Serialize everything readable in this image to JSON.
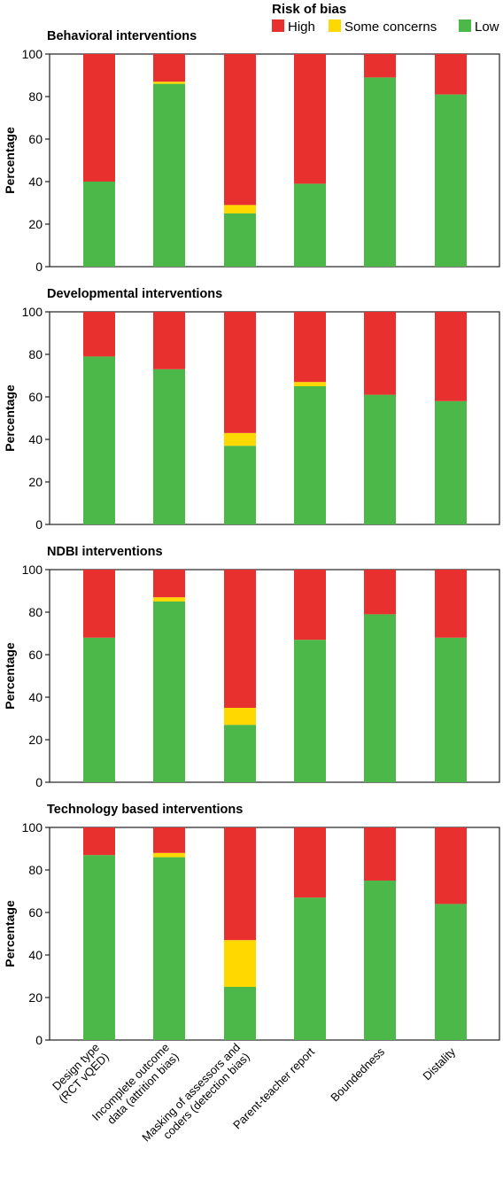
{
  "legend": {
    "title": "Risk of bias",
    "items": [
      {
        "key": "high",
        "label": "High",
        "color": "#e8312f"
      },
      {
        "key": "some",
        "label": "Some concerns",
        "color": "#ffd800"
      },
      {
        "key": "low",
        "label": "Low",
        "color": "#4cb849"
      }
    ]
  },
  "chart_data": {
    "type": "bar",
    "stacked": true,
    "categories": [
      [
        "Design type",
        "(RCT vQED)"
      ],
      [
        "Incomplete outcome",
        "data (attrition bias)"
      ],
      [
        "Masking of assessors and",
        "coders (detection bias)"
      ],
      [
        "Parent-teacher report"
      ],
      [
        "Boundedness"
      ],
      [
        "Distality"
      ]
    ],
    "ylabel": "Percentage",
    "ylim": [
      0,
      100
    ],
    "yticks": [
      0,
      20,
      40,
      60,
      80,
      100
    ],
    "panels": [
      {
        "title": "Behavioral interventions",
        "series": [
          {
            "name": "Low",
            "values": [
              40,
              86,
              25,
              39,
              89,
              81
            ]
          },
          {
            "name": "Some concerns",
            "values": [
              0,
              1,
              4,
              0,
              0,
              0
            ]
          },
          {
            "name": "High",
            "values": [
              60,
              13,
              71,
              61,
              11,
              19
            ]
          }
        ]
      },
      {
        "title": "Developmental interventions",
        "series": [
          {
            "name": "Low",
            "values": [
              79,
              73,
              37,
              65,
              61,
              58
            ]
          },
          {
            "name": "Some concerns",
            "values": [
              0,
              0,
              6,
              2,
              0,
              0
            ]
          },
          {
            "name": "High",
            "values": [
              21,
              27,
              57,
              33,
              39,
              42
            ]
          }
        ]
      },
      {
        "title": "NDBI interventions",
        "series": [
          {
            "name": "Low",
            "values": [
              68,
              85,
              27,
              67,
              79,
              68
            ]
          },
          {
            "name": "Some concerns",
            "values": [
              0,
              2,
              8,
              0,
              0,
              0
            ]
          },
          {
            "name": "High",
            "values": [
              32,
              13,
              65,
              33,
              21,
              32
            ]
          }
        ]
      },
      {
        "title": "Technology based interventions",
        "series": [
          {
            "name": "Low",
            "values": [
              87,
              86,
              25,
              67,
              75,
              64
            ]
          },
          {
            "name": "Some concerns",
            "values": [
              0,
              2,
              22,
              0,
              0,
              0
            ]
          },
          {
            "name": "High",
            "values": [
              13,
              12,
              53,
              33,
              25,
              36
            ]
          }
        ]
      }
    ]
  }
}
